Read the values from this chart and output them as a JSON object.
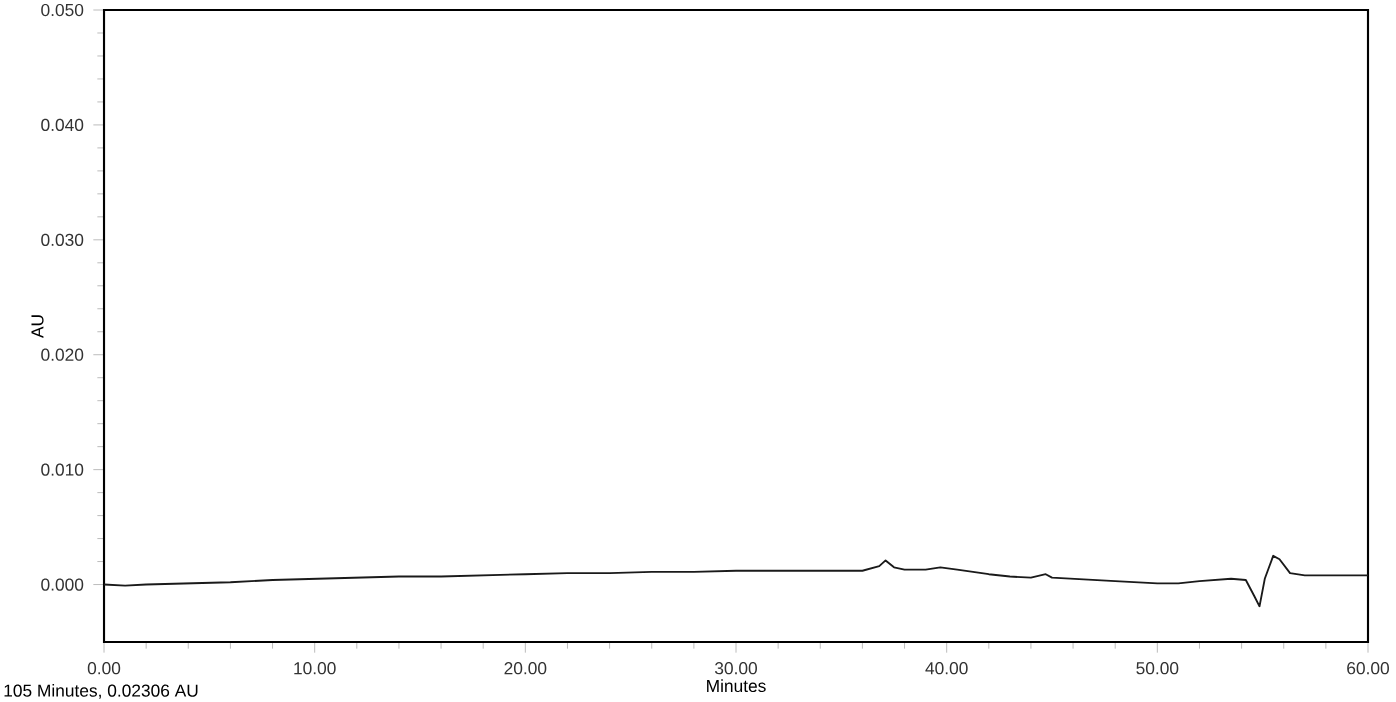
{
  "chart_data": {
    "type": "line",
    "xlabel": "Minutes",
    "ylabel": "AU",
    "annotations": [
      "105 Minutes, 0.02306 AU"
    ],
    "xlim": [
      0,
      60
    ],
    "ylim": [
      -0.005,
      0.05
    ],
    "xticks": [
      {
        "value": 0,
        "label": "0.00"
      },
      {
        "value": 10,
        "label": "10.00"
      },
      {
        "value": 20,
        "label": "20.00"
      },
      {
        "value": 30,
        "label": "30.00"
      },
      {
        "value": 40,
        "label": "40.00"
      },
      {
        "value": 50,
        "label": "50.00"
      },
      {
        "value": 60,
        "label": "60.00"
      }
    ],
    "yticks": [
      {
        "value": 0,
        "label": "0.000"
      },
      {
        "value": 0.01,
        "label": "0.010"
      },
      {
        "value": 0.02,
        "label": "0.020"
      },
      {
        "value": 0.03,
        "label": "0.030"
      },
      {
        "value": 0.04,
        "label": "0.040"
      },
      {
        "value": 0.05,
        "label": "0.050"
      }
    ],
    "line_style": "solid",
    "series": [
      {
        "color": "#1a1a1a",
        "x": [
          0,
          1,
          2,
          4,
          6,
          8,
          10,
          12,
          14,
          16,
          18,
          20,
          22,
          24,
          26,
          28,
          30,
          32,
          34,
          36,
          36.8,
          37.1,
          37.5,
          38,
          39,
          39.7,
          40.5,
          42,
          43,
          44,
          44.7,
          45,
          46,
          48,
          50,
          51,
          52,
          53.5,
          54.2,
          54.6,
          54.85,
          55.1,
          55.5,
          55.8,
          56.3,
          57,
          60
        ],
        "values": [
          0.0,
          -0.0001,
          0.0,
          0.0001,
          0.0002,
          0.0004,
          0.0005,
          0.0006,
          0.0007,
          0.0007,
          0.0008,
          0.0009,
          0.001,
          0.001,
          0.0011,
          0.0011,
          0.0012,
          0.0012,
          0.0012,
          0.0012,
          0.0016,
          0.0021,
          0.0015,
          0.0013,
          0.0013,
          0.0015,
          0.0013,
          0.0009,
          0.0007,
          0.0006,
          0.0009,
          0.0006,
          0.0005,
          0.0003,
          0.0001,
          0.0001,
          0.0003,
          0.0005,
          0.0004,
          -0.001,
          -0.0019,
          0.0005,
          0.0025,
          0.0022,
          0.001,
          0.0008,
          0.0008
        ]
      }
    ]
  }
}
